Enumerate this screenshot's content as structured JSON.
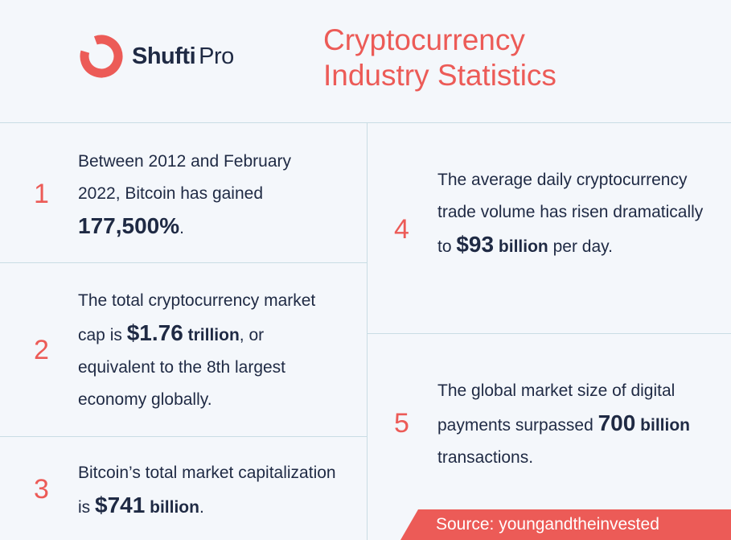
{
  "brand": {
    "bold": "Shufti",
    "regular": "Pro",
    "color": "#ec5b57"
  },
  "title": {
    "line1": "Cryptocurrency",
    "line2": "Industry Statistics"
  },
  "stats": [
    {
      "number": "1",
      "pre": "Between 2012 and February 2022, Bitcoin has gained ",
      "highlight": "177,500%",
      "post": "."
    },
    {
      "number": "2",
      "pre": "The total cryptocurrency market cap is ",
      "highlight": "$1.76",
      "unit": "trillion",
      "post": ", or equivalent to the 8th largest economy globally."
    },
    {
      "number": "3",
      "pre": "Bitcoin’s total market capitalization is ",
      "highlight": "$741",
      "unit": "billion",
      "post": "."
    },
    {
      "number": "4",
      "pre": "The average daily cryptocurrency trade volume has risen dramatically to ",
      "highlight": "$93",
      "unit": "billion",
      "post": " per day."
    },
    {
      "number": "5",
      "pre": "The global market size of digital payments surpassed ",
      "highlight": "700",
      "unit": "billion",
      "post": " transactions."
    }
  ],
  "source": "Source: youngandtheinvested",
  "colors": {
    "accent": "#ec5b57",
    "text": "#1f2a44",
    "background": "#f4f7fb",
    "divider": "#c9dde4"
  }
}
